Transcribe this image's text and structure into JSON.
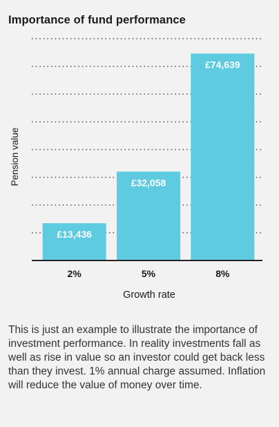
{
  "title": "Importance of fund performance",
  "note": "This is just an example to illustrate the importance of investment performance. In reality investments fall as well as rise in value so an investor could get back less than they invest. 1% annual charge assumed. Inflation will reduce the value of money over time.",
  "colors": {
    "bar": "#5ecbe0",
    "grid": "#555555",
    "axis": "#222222",
    "background": "#f2f2f2"
  },
  "chart_data": {
    "type": "bar",
    "categories": [
      "2%",
      "5%",
      "8%"
    ],
    "values": [
      13436,
      32058,
      74639
    ],
    "data_labels": [
      "£13,436",
      "£32,058",
      "£74,639"
    ],
    "xlabel": "Growth rate",
    "ylabel": "Pension value",
    "ylim": [
      0,
      80000
    ],
    "grid": true,
    "grid_style": "dotted",
    "y_ticks_labeled": false
  }
}
